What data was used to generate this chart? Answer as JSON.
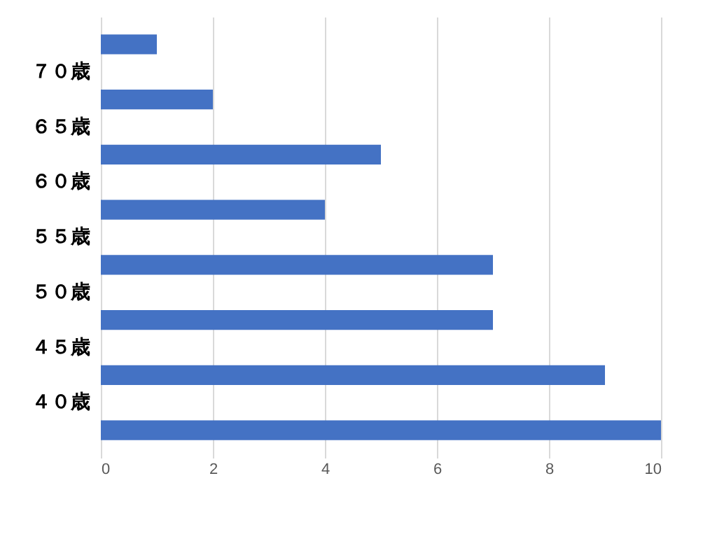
{
  "chart_data": {
    "type": "bar",
    "orientation": "horizontal",
    "categories": [
      null,
      "７０歳",
      "６５歳",
      "６０歳",
      "５５歳",
      "５０歳",
      "４５歳",
      "４０歳"
    ],
    "values": [
      1,
      2,
      5,
      4,
      7,
      7,
      9,
      10
    ],
    "color": "#4472c4",
    "xlim": [
      0,
      10
    ],
    "xticks": [
      0,
      2,
      4,
      6,
      8,
      10
    ],
    "grid": "x"
  }
}
